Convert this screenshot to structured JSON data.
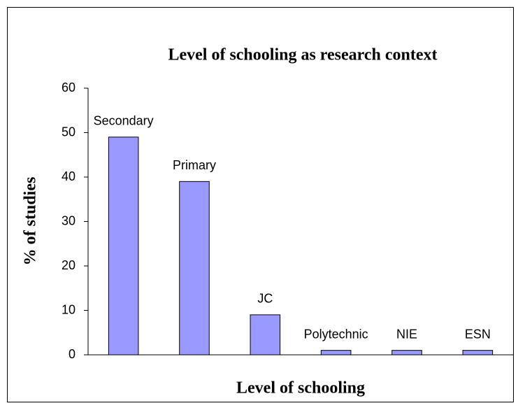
{
  "chart_data": {
    "type": "bar",
    "title": "Level of schooling as research context",
    "x_label": "Level of schooling",
    "y_label": "% of studies",
    "categories": [
      "Secondary",
      "Primary",
      "JC",
      "Polytechnic",
      "NIE",
      "ESN"
    ],
    "values": [
      49,
      39,
      9,
      1,
      1,
      1
    ],
    "color": "#9999ff",
    "ylim": [
      0,
      60
    ],
    "yticks": [
      0,
      10,
      20,
      30,
      40,
      50,
      60
    ],
    "grid": false
  }
}
